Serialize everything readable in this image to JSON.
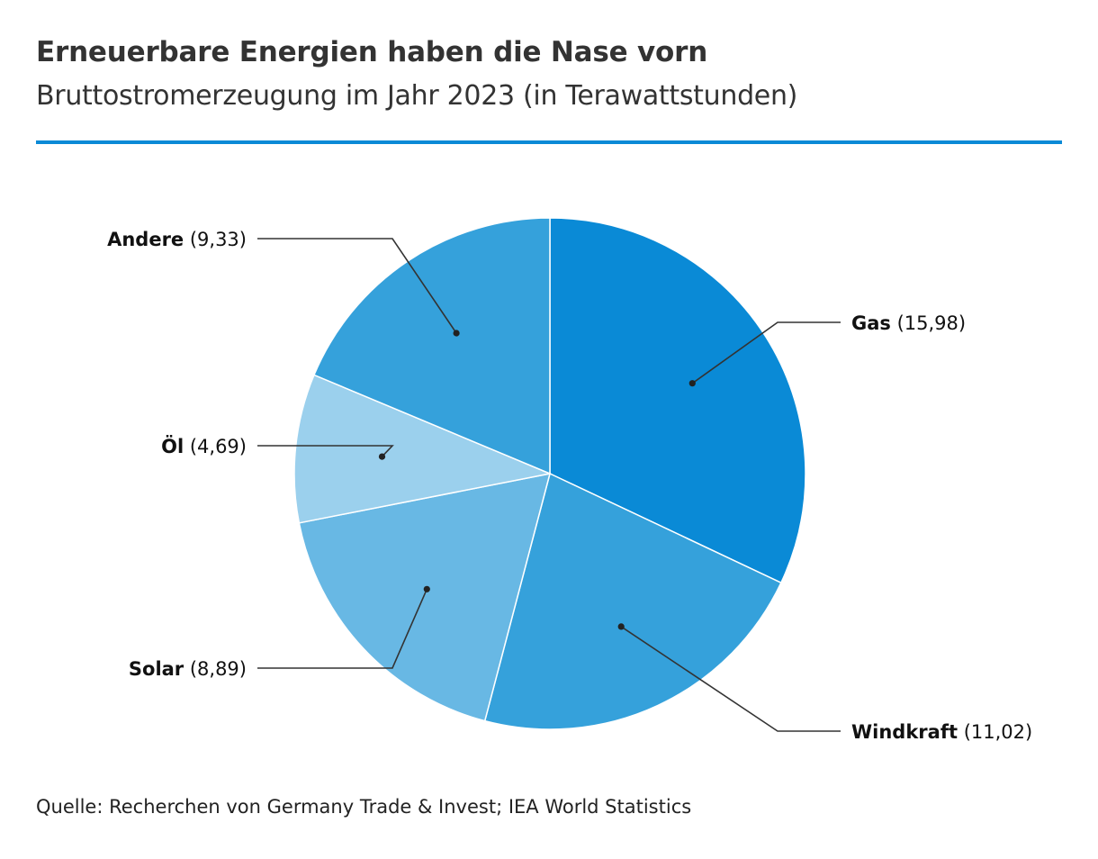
{
  "title": "Erneuerbare Energien haben die Nase vorn",
  "subtitle": "Bruttostromerzeugung im Jahr 2023 (in Terawattstunden)",
  "source": "Quelle: Recherchen von Germany Trade & Invest; IEA World Statistics",
  "colors": {
    "accent_rule": "#0a8ad6",
    "slice_border": "#ffffff",
    "leader": "#333333"
  },
  "chart_data": {
    "type": "pie",
    "slices": [
      {
        "name": "Gas",
        "value": 15.98,
        "value_label": "(15,98)",
        "color": "#0a8ad6"
      },
      {
        "name": "Windkraft",
        "value": 11.02,
        "value_label": "(11,02)",
        "color": "#35a1db"
      },
      {
        "name": "Solar",
        "value": 8.89,
        "value_label": "(8,89)",
        "color": "#68b8e4"
      },
      {
        "name": "Öl",
        "value": 4.69,
        "value_label": "(4,69)",
        "color": "#9bd0ed"
      },
      {
        "name": "Andere",
        "value": 9.33,
        "value_label": "(9,33)",
        "color": "#35a1db"
      }
    ]
  }
}
